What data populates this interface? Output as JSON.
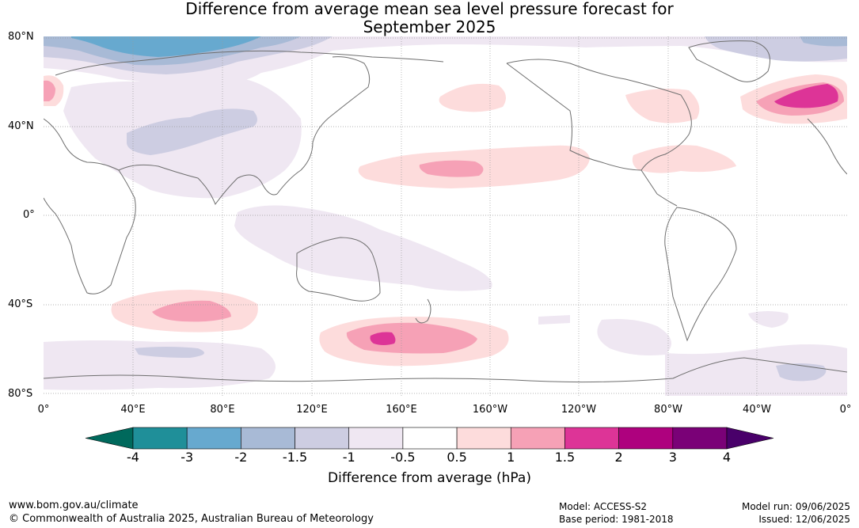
{
  "title": {
    "line1": "Difference from average mean sea level pressure forecast for",
    "line2": "September 2025"
  },
  "map": {
    "lat_labels": [
      "80°N",
      "40°N",
      "0°",
      "40°S",
      "80°S"
    ],
    "lon_labels": [
      "0°",
      "40°E",
      "80°E",
      "120°E",
      "160°E",
      "160°W",
      "120°W",
      "80°W",
      "40°W",
      "0°"
    ],
    "colors": {
      "coast": "#6e6e6e",
      "grid": "#9a9a9a"
    }
  },
  "legend": {
    "ticks": [
      "-4",
      "-3",
      "-2",
      "-1.5",
      "-1",
      "-0.5",
      "0.5",
      "1",
      "1.5",
      "2",
      "3",
      "4"
    ],
    "colors": [
      "#00695c",
      "#1f8f99",
      "#67a9cf",
      "#a8bad6",
      "#cdcde2",
      "#efe7f2",
      "#ffffff",
      "#fddcdc",
      "#f6a1b6",
      "#dd3497",
      "#ae017e",
      "#7a0177",
      "#49006a"
    ],
    "label": "Difference from average (hPa)"
  },
  "footer": {
    "url": "www.bom.gov.au/climate",
    "copyright": "© Commonwealth of Australia 2025, Australian Bureau of Meteorology",
    "model": "Model: ACCESS-S2",
    "base_period": "Base period: 1981-2018",
    "model_run": "Model run: 09/06/2025",
    "issued": "Issued: 12/06/2025"
  }
}
